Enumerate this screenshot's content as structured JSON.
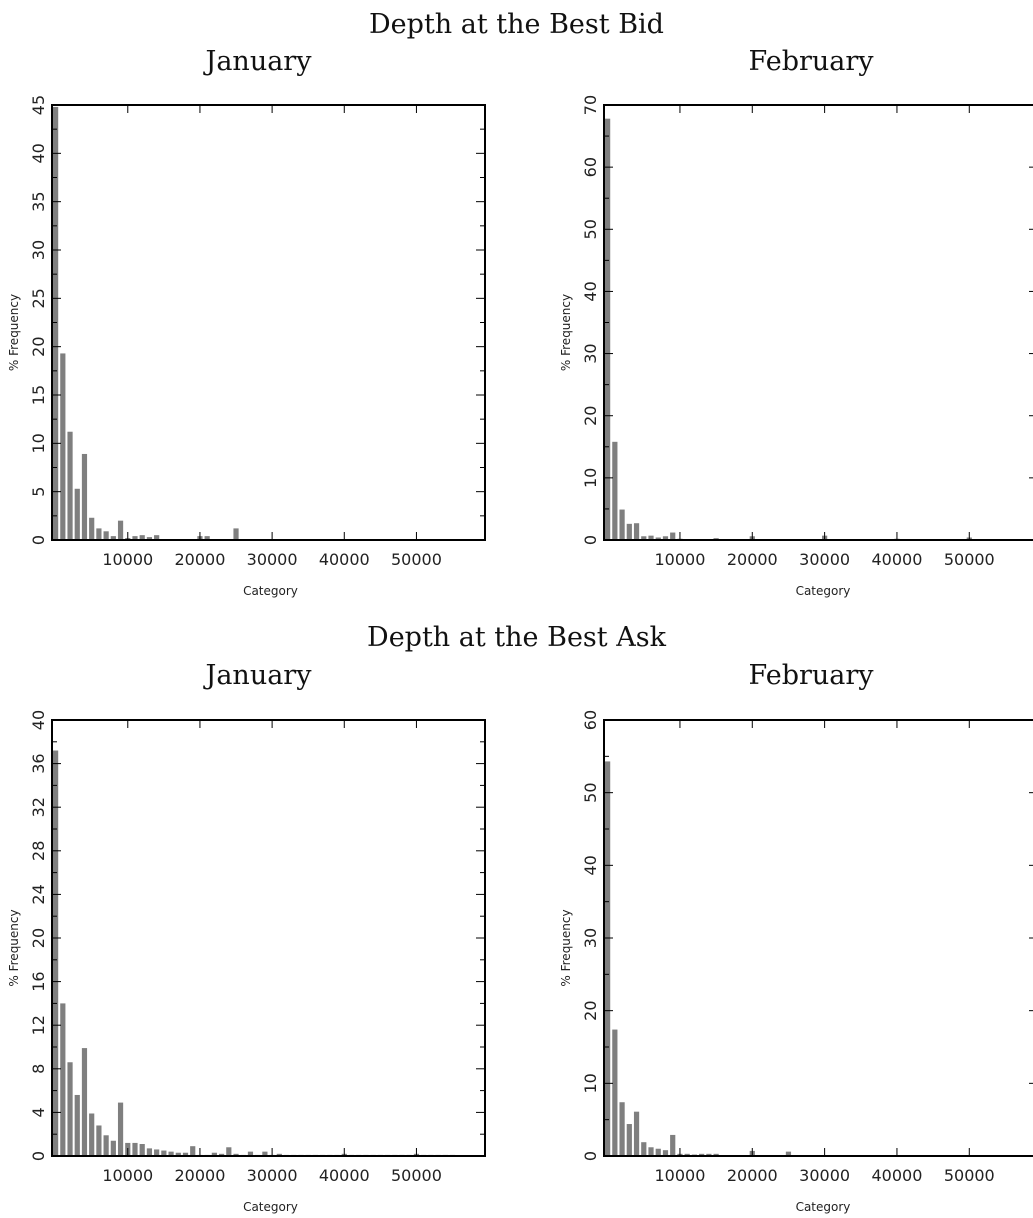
{
  "titles": {
    "bid": "Depth at the Best Bid",
    "ask": "Depth at the Best Ask"
  },
  "colors": {
    "bar": "#7f7f7f",
    "frame": "#000000"
  },
  "chart_data": [
    {
      "type": "bar",
      "title": "January",
      "xlabel": "Category",
      "ylabel": "% Frequency",
      "xlim": [
        -500,
        59500
      ],
      "ylim": [
        0,
        45
      ],
      "xticks": [
        10000,
        20000,
        30000,
        40000,
        50000
      ],
      "yticks": [
        0,
        5,
        10,
        15,
        20,
        25,
        30,
        35,
        40,
        45
      ],
      "bin_width": 1000,
      "x": [
        0,
        1000,
        2000,
        3000,
        4000,
        5000,
        6000,
        7000,
        8000,
        9000,
        10000,
        11000,
        12000,
        13000,
        14000,
        15000,
        16000,
        17000,
        18000,
        19000,
        20000,
        21000,
        22000,
        23000,
        24000,
        25000,
        26000,
        27000,
        28000,
        29000,
        30000,
        31000,
        32000,
        33000,
        34000,
        35000,
        36000,
        37000,
        38000,
        39000,
        40000,
        41000,
        42000,
        43000,
        44000,
        45000,
        46000,
        47000,
        48000,
        49000,
        50000,
        51000,
        52000,
        53000,
        54000,
        55000
      ],
      "values": [
        44.8,
        19.3,
        11.2,
        5.3,
        8.9,
        2.3,
        1.2,
        0.9,
        0.4,
        2.0,
        0.2,
        0.4,
        0.5,
        0.3,
        0.5,
        0.1,
        0.1,
        0.1,
        0.1,
        0.1,
        0.4,
        0.4,
        0.1,
        0.1,
        0.1,
        1.2,
        0.1,
        0.1,
        0.1,
        0.1,
        0.1,
        0.1,
        0.1,
        0.1,
        0.1,
        0.1,
        0.1,
        0.1,
        0.1,
        0.1,
        0.1,
        0.1,
        0.1,
        0.1,
        0.1,
        0.1,
        0.1,
        0.1,
        0.1,
        0.1,
        0.1,
        0.1,
        0.1,
        0.1,
        0.1,
        0.1
      ]
    },
    {
      "type": "bar",
      "title": "February",
      "xlabel": "Category",
      "ylabel": "% Frequency",
      "xlim": [
        -500,
        59500
      ],
      "ylim": [
        0,
        70
      ],
      "xticks": [
        10000,
        20000,
        30000,
        40000,
        50000
      ],
      "yticks": [
        0,
        10,
        20,
        30,
        40,
        50,
        60,
        70
      ],
      "bin_width": 1000,
      "x": [
        0,
        1000,
        2000,
        3000,
        4000,
        5000,
        6000,
        7000,
        8000,
        9000,
        10000,
        11000,
        12000,
        13000,
        14000,
        15000,
        16000,
        17000,
        18000,
        19000,
        20000,
        21000,
        22000,
        23000,
        24000,
        25000,
        26000,
        27000,
        28000,
        29000,
        30000,
        31000,
        32000,
        33000,
        34000,
        35000,
        36000,
        37000,
        38000,
        39000,
        40000,
        41000,
        42000,
        43000,
        44000,
        45000,
        46000,
        47000,
        48000,
        49000,
        50000,
        51000,
        52000,
        53000,
        54000,
        55000
      ],
      "values": [
        67.8,
        15.8,
        4.9,
        2.6,
        2.7,
        0.6,
        0.7,
        0.4,
        0.6,
        1.2,
        0.2,
        0.1,
        0.1,
        0.1,
        0.1,
        0.3,
        0.1,
        0.1,
        0.1,
        0.1,
        0.6,
        0.1,
        0.1,
        0.1,
        0.1,
        0.1,
        0.1,
        0.1,
        0.1,
        0.1,
        0.7,
        0.1,
        0.1,
        0.1,
        0.1,
        0.1,
        0.1,
        0.1,
        0.1,
        0.1,
        0.2,
        0.1,
        0.1,
        0.1,
        0.1,
        0.1,
        0.1,
        0.1,
        0.1,
        0.1,
        0.4,
        0.1,
        0.1,
        0.1,
        0.1,
        0.1
      ]
    },
    {
      "type": "bar",
      "title": "January",
      "xlabel": "Category",
      "ylabel": "% Frequency",
      "xlim": [
        -500,
        59500
      ],
      "ylim": [
        0,
        40
      ],
      "xticks": [
        10000,
        20000,
        30000,
        40000,
        50000
      ],
      "yticks": [
        0,
        4,
        8,
        12,
        16,
        20,
        24,
        28,
        32,
        36,
        40
      ],
      "bin_width": 1000,
      "x": [
        0,
        1000,
        2000,
        3000,
        4000,
        5000,
        6000,
        7000,
        8000,
        9000,
        10000,
        11000,
        12000,
        13000,
        14000,
        15000,
        16000,
        17000,
        18000,
        19000,
        20000,
        21000,
        22000,
        23000,
        24000,
        25000,
        26000,
        27000,
        28000,
        29000,
        30000,
        31000,
        32000,
        33000,
        34000,
        35000,
        36000,
        37000,
        38000,
        39000,
        40000,
        41000,
        42000,
        43000,
        44000,
        45000,
        46000,
        47000,
        48000,
        49000,
        50000,
        51000,
        52000,
        53000,
        54000,
        55000
      ],
      "values": [
        37.2,
        14.0,
        8.6,
        5.6,
        9.9,
        3.9,
        2.8,
        1.9,
        1.4,
        4.9,
        1.2,
        1.2,
        1.1,
        0.7,
        0.6,
        0.5,
        0.4,
        0.3,
        0.3,
        0.9,
        0.1,
        0.1,
        0.3,
        0.2,
        0.8,
        0.2,
        0.1,
        0.4,
        0.1,
        0.4,
        0.1,
        0.2,
        0.1,
        0.1,
        0.1,
        0.1,
        0.1,
        0.1,
        0.1,
        0.1,
        0.2,
        0.1,
        0.1,
        0.1,
        0.1,
        0.1,
        0.1,
        0.1,
        0.1,
        0.1,
        0.2,
        0.1,
        0.1,
        0.1,
        0.1,
        0.1
      ]
    },
    {
      "type": "bar",
      "title": "February",
      "xlabel": "Category",
      "ylabel": "% Frequency",
      "xlim": [
        -500,
        59500
      ],
      "ylim": [
        0,
        60
      ],
      "xticks": [
        10000,
        20000,
        30000,
        40000,
        50000
      ],
      "yticks": [
        0,
        10,
        20,
        30,
        40,
        50,
        60
      ],
      "bin_width": 1000,
      "x": [
        0,
        1000,
        2000,
        3000,
        4000,
        5000,
        6000,
        7000,
        8000,
        9000,
        10000,
        11000,
        12000,
        13000,
        14000,
        15000,
        16000,
        17000,
        18000,
        19000,
        20000,
        21000,
        22000,
        23000,
        24000,
        25000,
        26000,
        27000,
        28000,
        29000,
        30000,
        31000,
        32000,
        33000,
        34000,
        35000,
        36000,
        37000,
        38000,
        39000,
        40000,
        41000,
        42000,
        43000,
        44000,
        45000,
        46000,
        47000,
        48000,
        49000,
        50000,
        51000,
        52000,
        53000,
        54000,
        55000
      ],
      "values": [
        54.3,
        17.4,
        7.4,
        4.4,
        6.1,
        1.9,
        1.2,
        1.0,
        0.8,
        2.9,
        0.3,
        0.3,
        0.2,
        0.3,
        0.3,
        0.3,
        0.1,
        0.1,
        0.1,
        0.1,
        0.7,
        0.1,
        0.1,
        0.1,
        0.1,
        0.6,
        0.1,
        0.1,
        0.1,
        0.1,
        0.1,
        0.1,
        0.1,
        0.1,
        0.1,
        0.1,
        0.1,
        0.1,
        0.1,
        0.1,
        0.1,
        0.1,
        0.1,
        0.1,
        0.1,
        0.1,
        0.1,
        0.1,
        0.1,
        0.1,
        0.1,
        0.1,
        0.1,
        0.1,
        0.1,
        0.1
      ]
    }
  ]
}
